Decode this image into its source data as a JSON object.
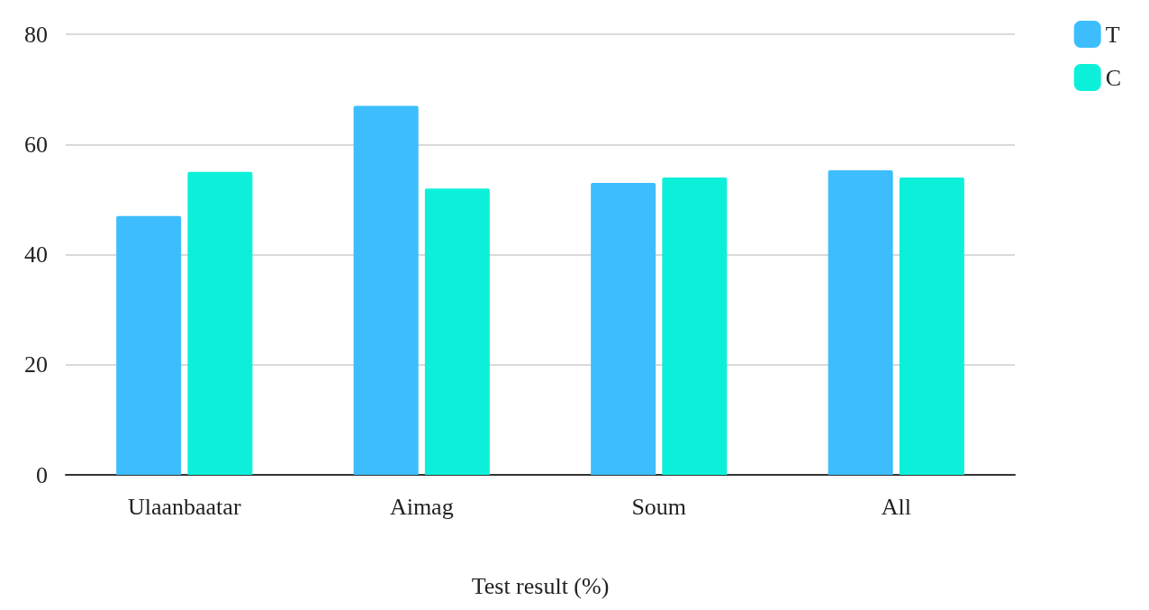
{
  "chart_data": {
    "type": "bar",
    "xlabel": "Test result (%)",
    "categories": [
      "Ulaanbaatar",
      "Aimag",
      "Soum",
      "All"
    ],
    "series": [
      {
        "name": "T",
        "color": "#3dbdfc",
        "values": [
          47,
          67,
          53,
          55.3
        ]
      },
      {
        "name": "C",
        "color": "#0cf0da",
        "values": [
          55,
          52,
          54,
          54
        ]
      }
    ],
    "ylim": [
      0,
      80
    ],
    "yticks": [
      0,
      20,
      40,
      60,
      80
    ],
    "grid": "y",
    "legend": "top right"
  }
}
